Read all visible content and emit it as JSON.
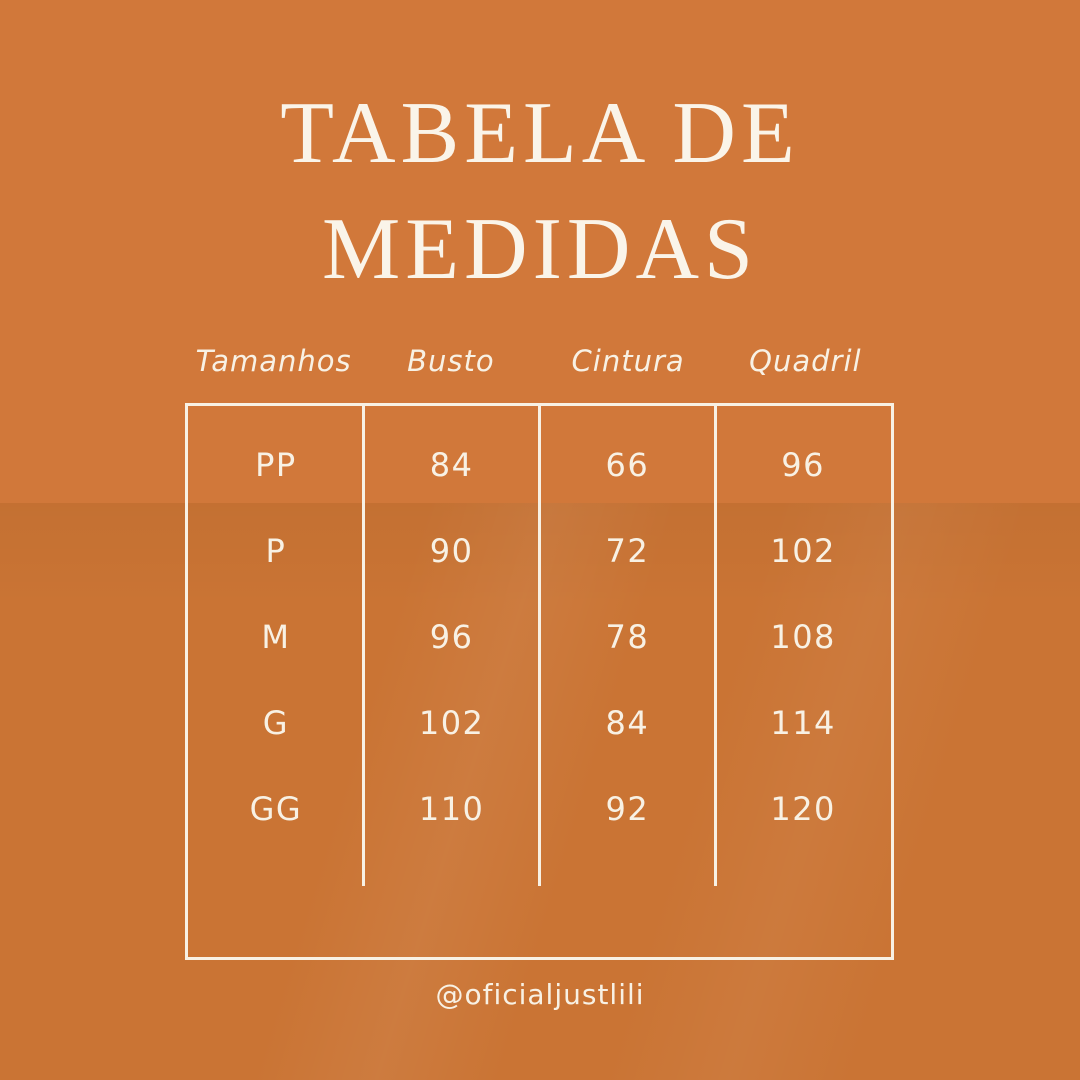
{
  "title": {
    "line1": "TABELA DE",
    "line2": "MEDIDAS"
  },
  "table": {
    "headers": [
      "Tamanhos",
      "Busto",
      "Cintura",
      "Quadril"
    ],
    "rows": [
      [
        "PP",
        "84",
        "66",
        "96"
      ],
      [
        "P",
        "90",
        "72",
        "102"
      ],
      [
        "M",
        "96",
        "78",
        "108"
      ],
      [
        "G",
        "102",
        "84",
        "114"
      ],
      [
        "GG",
        "110",
        "92",
        "120"
      ]
    ]
  },
  "footer": {
    "handle": "@oficialjustlili"
  },
  "colors": {
    "background_top": "#d1783a",
    "background_bottom": "#ca7434",
    "text_cream": "#f8f1e4",
    "title_cream": "#faf4e9"
  },
  "chart_data": {
    "type": "table",
    "title": "TABELA DE MEDIDAS",
    "columns": [
      "Tamanhos",
      "Busto",
      "Cintura",
      "Quadril"
    ],
    "rows": [
      [
        "PP",
        84,
        66,
        96
      ],
      [
        "P",
        90,
        72,
        102
      ],
      [
        "M",
        96,
        78,
        108
      ],
      [
        "G",
        102,
        84,
        114
      ],
      [
        "GG",
        110,
        92,
        120
      ]
    ],
    "notes": "Size chart graphic; measurements presumably in cm; grid has outer border and three inner column dividers that stop short of the bottom border"
  }
}
